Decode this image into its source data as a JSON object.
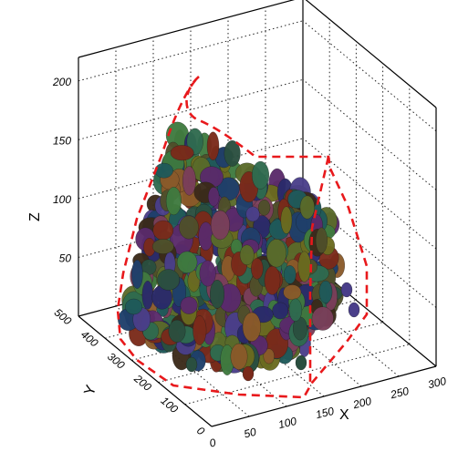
{
  "chart_data": {
    "type": "scatter",
    "title": "",
    "projection": "3d",
    "grid": true,
    "axes": {
      "x": {
        "label": "X",
        "range": [
          0,
          300
        ],
        "ticks": [
          "0",
          "50",
          "100",
          "150",
          "200",
          "250",
          "300"
        ]
      },
      "y": {
        "label": "Y",
        "range": [
          0,
          500
        ],
        "ticks": [
          "0",
          "100",
          "200",
          "300",
          "400",
          "500"
        ]
      },
      "z": {
        "label": "Z",
        "range": [
          0,
          220
        ],
        "ticks": [
          "50",
          "100",
          "150",
          "200"
        ]
      }
    },
    "grain_palette": [
      "#3b2a1a",
      "#4a3f8a",
      "#2f6b4f",
      "#6b6b1f",
      "#7a2a1a",
      "#1f5a5a",
      "#5a2a6b",
      "#2a2a6b",
      "#8a5a2a",
      "#3f7a3f",
      "#5a6b2a",
      "#2a4f3f",
      "#7a3f5a",
      "#4f4f2a",
      "#1f3f6b"
    ],
    "boundary": {
      "style": "dashed",
      "color": "#e8191c"
    }
  }
}
